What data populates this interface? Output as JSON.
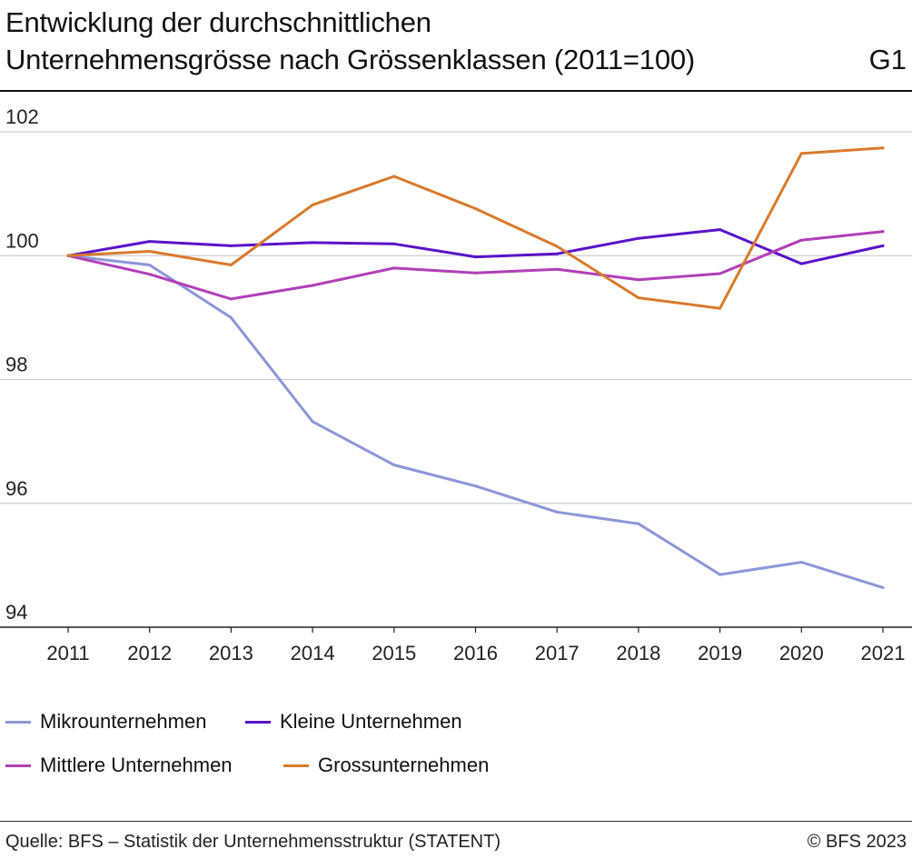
{
  "header": {
    "title_line1": "Entwicklung der durchschnittlichen",
    "title_line2": "Unternehmensgrösse nach Grössenklassen (2011=100)",
    "chart_id": "G1"
  },
  "footer": {
    "source": "Quelle: BFS – Statistik der Unternehmensstruktur (STATENT)",
    "copyright": "© BFS 2023"
  },
  "chart_data": {
    "type": "line",
    "title": "Entwicklung der durchschnittlichen Unternehmensgrösse nach Grössenklassen (2011=100)",
    "xlabel": "",
    "ylabel": "",
    "x": [
      "2011",
      "2012",
      "2013",
      "2014",
      "2015",
      "2016",
      "2017",
      "2018",
      "2019",
      "2020",
      "2021"
    ],
    "ylim": [
      94,
      102
    ],
    "yticks": [
      94,
      96,
      98,
      100,
      102
    ],
    "grid": true,
    "legend_position": "bottom",
    "series": [
      {
        "name": "Mikrounternehmen",
        "color": "#8c96d8",
        "values": [
          100.0,
          99.85,
          99.0,
          97.32,
          96.62,
          96.28,
          95.86,
          95.67,
          94.85,
          95.05,
          94.64
        ]
      },
      {
        "name": "Kleine Unternehmen",
        "color": "#5a12c9",
        "values": [
          100.0,
          100.23,
          100.16,
          100.21,
          100.19,
          99.98,
          100.03,
          100.28,
          100.42,
          99.87,
          100.16
        ]
      },
      {
        "name": "Mittlere Unternehmen",
        "color": "#b23fb8",
        "values": [
          100.0,
          99.7,
          99.3,
          99.52,
          99.8,
          99.72,
          99.78,
          99.61,
          99.71,
          100.25,
          100.39
        ]
      },
      {
        "name": "Grossunternehmen",
        "color": "#d97a2b",
        "values": [
          100.0,
          100.07,
          99.85,
          100.82,
          101.28,
          100.76,
          100.15,
          99.32,
          99.15,
          101.65,
          101.74
        ]
      }
    ]
  }
}
